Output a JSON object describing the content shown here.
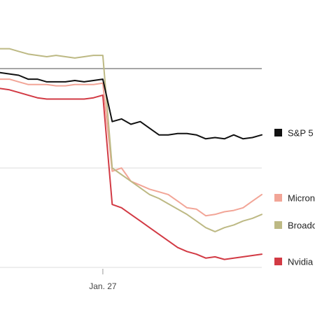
{
  "chart_data": {
    "type": "line",
    "title": "",
    "xlabel": "",
    "ylabel": "",
    "x_tick_labels": [
      {
        "x": 11,
        "label": "Jan. 27"
      }
    ],
    "xlim": [
      0,
      28
    ],
    "ylim": [
      -25,
      6
    ],
    "baseline_value": 0,
    "gridlines": [
      0,
      -15,
      -30
    ],
    "x": [
      0,
      1,
      2,
      3,
      4,
      5,
      6,
      7,
      8,
      9,
      10,
      11,
      12,
      13,
      14,
      15,
      16,
      17,
      18,
      19,
      20,
      21,
      22,
      23,
      24,
      25,
      26,
      27,
      28
    ],
    "series": [
      {
        "name": "S&P 5",
        "color": "#111111",
        "values": [
          -0.6,
          -0.8,
          -1.0,
          -1.6,
          -1.6,
          -2.0,
          -2.0,
          -2.0,
          -1.8,
          -2.0,
          -1.8,
          -1.6,
          -8.0,
          -7.6,
          -8.4,
          -8.0,
          -9.0,
          -10.0,
          -10.0,
          -9.8,
          -9.8,
          -10.0,
          -10.6,
          -10.4,
          -10.6,
          -10.0,
          -10.6,
          -10.4,
          -10.0
        ]
      },
      {
        "name": "Micron",
        "color": "#f2a597",
        "values": [
          -1.6,
          -1.6,
          -2.0,
          -2.4,
          -2.4,
          -2.4,
          -2.6,
          -2.6,
          -2.4,
          -2.4,
          -2.4,
          -2.2,
          -15.5,
          -15.0,
          -17.0,
          -17.6,
          -18.2,
          -18.6,
          -19.0,
          -20.0,
          -21.0,
          -21.2,
          -22.2,
          -22.0,
          -21.6,
          -21.4,
          -21.0,
          -20.0,
          -19.0
        ]
      },
      {
        "name": "Broadc",
        "color": "#bdb984",
        "values": [
          3.0,
          3.0,
          2.6,
          2.2,
          2.0,
          1.8,
          2.0,
          1.8,
          1.6,
          1.8,
          2.0,
          2.0,
          -15.0,
          -16.0,
          -17.0,
          -18.0,
          -19.0,
          -19.6,
          -20.4,
          -21.2,
          -22.0,
          -23.0,
          -24.0,
          -24.6,
          -24.0,
          -23.6,
          -23.0,
          -22.6,
          -22.0
        ]
      },
      {
        "name": "Nvidia",
        "color": "#d23a44",
        "values": [
          -3.0,
          -3.2,
          -3.6,
          -4.0,
          -4.4,
          -4.6,
          -4.6,
          -4.6,
          -4.6,
          -4.6,
          -4.4,
          -4.0,
          -20.5,
          -21.0,
          -22.0,
          -23.0,
          -24.0,
          -25.0,
          -26.0,
          -27.0,
          -27.6,
          -28.0,
          -28.6,
          -28.4,
          -28.8,
          -28.6,
          -28.4,
          -28.2,
          -28.0
        ]
      }
    ]
  }
}
